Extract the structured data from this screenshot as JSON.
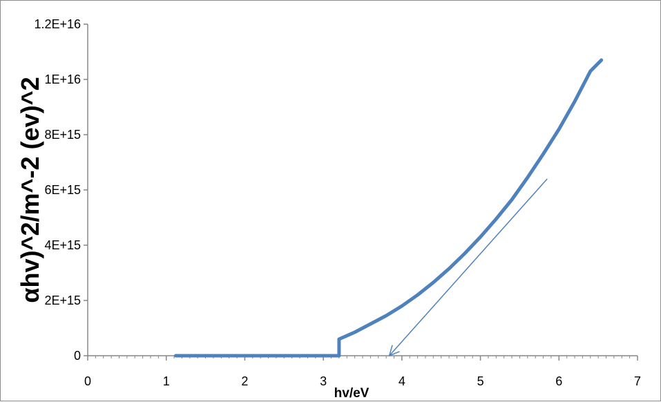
{
  "chart_data": {
    "type": "line",
    "title": "",
    "xlabel": "hv/eV",
    "ylabel": "αhv)^2/m^-2 (ev)^2",
    "xlim": [
      0,
      7
    ],
    "ylim": [
      0,
      1.2e+16
    ],
    "x_ticks": [
      "0",
      "1",
      "2",
      "3",
      "4",
      "5",
      "6",
      "7"
    ],
    "y_ticks": [
      "0",
      "2E+15",
      "4E+15",
      "6E+15",
      "8E+15",
      "1E+16",
      "1.2E+16"
    ],
    "grid": false,
    "legend": "none",
    "series": [
      {
        "color": "#4f81bd",
        "x": [
          1.12,
          1.3,
          1.6,
          1.9,
          2.2,
          2.5,
          2.8,
          3.0,
          3.15,
          3.19,
          3.2,
          3.2,
          3.4,
          3.6,
          3.8,
          4.0,
          4.2,
          4.4,
          4.6,
          4.8,
          5.0,
          5.2,
          5.4,
          5.6,
          5.8,
          6.0,
          6.2,
          6.4,
          6.54
        ],
        "y": [
          0,
          0,
          0,
          0,
          0,
          0,
          0,
          0,
          0,
          0,
          0,
          600000000000000.0,
          850000000000000.0,
          1150000000000000.0,
          1450000000000000.0,
          1800000000000000.0,
          2200000000000000.0,
          2650000000000000.0,
          3150000000000000.0,
          3700000000000000.0,
          4300000000000000.0,
          4950000000000000.0,
          5650000000000000.0,
          6450000000000000.0,
          7300000000000000.0,
          8200000000000000.0,
          9200000000000000.0,
          1.03e+16,
          1.07e+16
        ]
      }
    ],
    "annotations": [
      {
        "type": "arrow",
        "color": "#4f81bd",
        "from": [
          5.85,
          6400000000000000.0
        ],
        "to": [
          3.84,
          0
        ]
      }
    ]
  }
}
